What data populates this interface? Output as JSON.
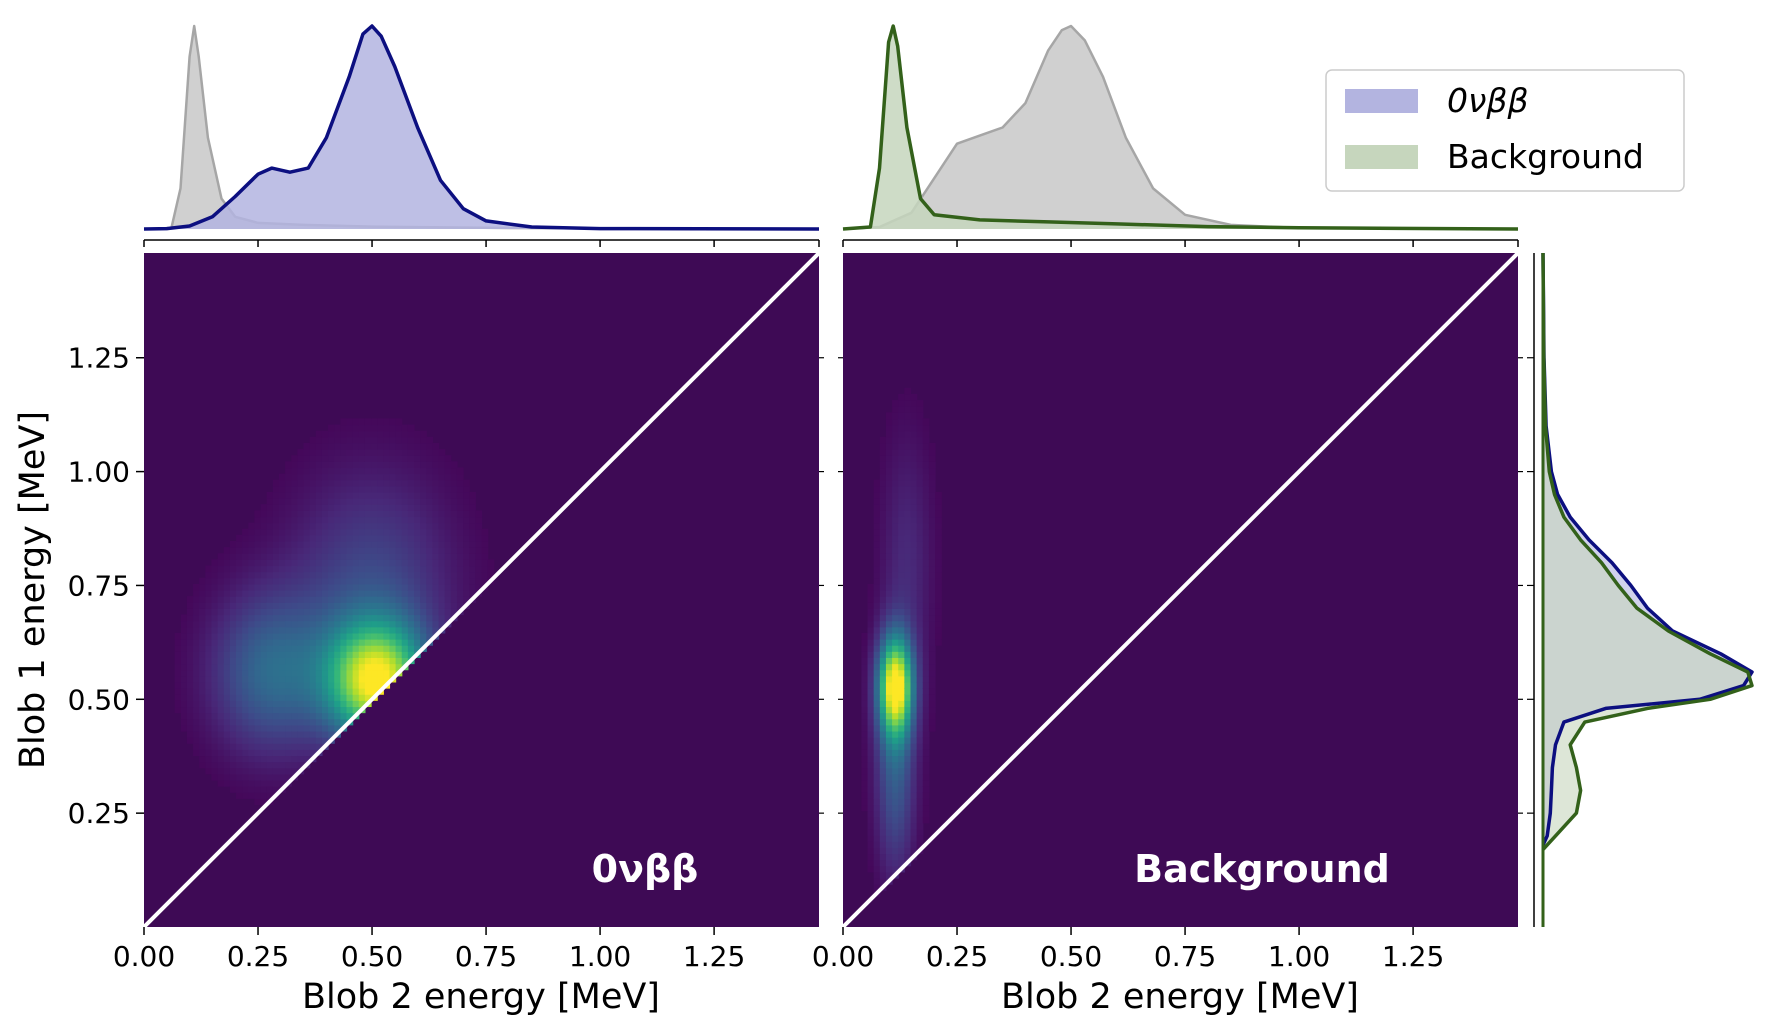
{
  "colors": {
    "signal_line": "#0c0f80",
    "signal_fill": "#b3b4e0",
    "background_line": "#33611a",
    "background_fill": "#c6d6bd",
    "reference_line": "#a6a6a6",
    "reference_fill": "#c8c8c8",
    "heatmap_low": "#440154",
    "heatmap_floor": "#3e0a55",
    "diagonal": "#ffffff"
  },
  "legend": {
    "placement": "top-right",
    "items": [
      {
        "label": "0νββ",
        "color_key": "signal_fill"
      },
      {
        "label": "Background",
        "color_key": "background_fill"
      }
    ]
  },
  "chart_data": [
    {
      "type": "heatmap",
      "panel_label": "0νββ",
      "xlabel": "Blob 2 energy [MeV]",
      "ylabel": "Blob 1 energy [MeV]",
      "xlim": [
        0,
        1.48
      ],
      "ylim": [
        0,
        1.48
      ],
      "xticks": [
        0.0,
        0.25,
        0.5,
        0.75,
        1.0,
        1.25
      ],
      "xtick_labels": [
        "0.00",
        "0.25",
        "0.50",
        "0.75",
        "1.00",
        "1.25"
      ],
      "yticks": [
        0.25,
        0.5,
        0.75,
        1.0,
        1.25
      ],
      "ytick_labels": [
        "0.25",
        "0.50",
        "0.75",
        "1.00",
        "1.25"
      ],
      "colormap": "viridis",
      "diagonal_line": true,
      "density_components": [
        {
          "x": 0.51,
          "y": 0.54,
          "sx": 0.075,
          "sy": 0.09,
          "weight": 1.0
        },
        {
          "x": 0.28,
          "y": 0.56,
          "sx": 0.09,
          "sy": 0.12,
          "weight": 0.35
        },
        {
          "x": 0.5,
          "y": 0.75,
          "sx": 0.12,
          "sy": 0.17,
          "weight": 0.22
        }
      ]
    },
    {
      "type": "heatmap",
      "panel_label": "Background",
      "xlabel": "Blob 2 energy [MeV]",
      "xlim": [
        0,
        1.48
      ],
      "ylim": [
        0,
        1.48
      ],
      "xticks": [
        0.0,
        0.25,
        0.5,
        0.75,
        1.0,
        1.25
      ],
      "xtick_labels": [
        "0.00",
        "0.25",
        "0.50",
        "0.75",
        "1.00",
        "1.25"
      ],
      "colormap": "viridis",
      "diagonal_line": true,
      "density_components": [
        {
          "x": 0.115,
          "y": 0.53,
          "sx": 0.026,
          "sy": 0.075,
          "weight": 1.0
        },
        {
          "x": 0.115,
          "y": 0.35,
          "sx": 0.03,
          "sy": 0.16,
          "weight": 0.3
        },
        {
          "x": 0.14,
          "y": 0.8,
          "sx": 0.04,
          "sy": 0.2,
          "weight": 0.12
        }
      ]
    },
    {
      "type": "area",
      "panel": "top-left",
      "axis": "Blob 2 energy [MeV]",
      "xlim": [
        0,
        1.48
      ],
      "series": [
        {
          "name": "0νββ",
          "color_key": "signal_line",
          "fill_key": "signal_fill",
          "points": [
            [
              0,
              0
            ],
            [
              0.05,
              0.002
            ],
            [
              0.1,
              0.015
            ],
            [
              0.15,
              0.06
            ],
            [
              0.2,
              0.16
            ],
            [
              0.25,
              0.27
            ],
            [
              0.28,
              0.3
            ],
            [
              0.32,
              0.28
            ],
            [
              0.36,
              0.3
            ],
            [
              0.4,
              0.45
            ],
            [
              0.45,
              0.75
            ],
            [
              0.48,
              0.96
            ],
            [
              0.5,
              1.0
            ],
            [
              0.52,
              0.95
            ],
            [
              0.55,
              0.8
            ],
            [
              0.6,
              0.5
            ],
            [
              0.65,
              0.24
            ],
            [
              0.7,
              0.1
            ],
            [
              0.75,
              0.04
            ],
            [
              0.85,
              0.01
            ],
            [
              1.0,
              0.002
            ],
            [
              1.48,
              0
            ]
          ]
        },
        {
          "name": "reference",
          "color_key": "reference_line",
          "fill_key": "reference_fill",
          "points": [
            [
              0,
              0
            ],
            [
              0.06,
              0.005
            ],
            [
              0.08,
              0.2
            ],
            [
              0.1,
              0.85
            ],
            [
              0.11,
              1.0
            ],
            [
              0.12,
              0.85
            ],
            [
              0.14,
              0.45
            ],
            [
              0.17,
              0.15
            ],
            [
              0.2,
              0.06
            ],
            [
              0.25,
              0.03
            ],
            [
              0.35,
              0.02
            ],
            [
              0.5,
              0.012
            ],
            [
              0.8,
              0.005
            ],
            [
              1.48,
              0
            ]
          ]
        }
      ]
    },
    {
      "type": "area",
      "panel": "top-right",
      "axis": "Blob 2 energy [MeV]",
      "xlim": [
        0,
        1.48
      ],
      "series": [
        {
          "name": "Background",
          "color_key": "background_line",
          "fill_key": "background_fill",
          "points": [
            [
              0,
              0
            ],
            [
              0.06,
              0.01
            ],
            [
              0.08,
              0.3
            ],
            [
              0.1,
              0.92
            ],
            [
              0.11,
              1.0
            ],
            [
              0.12,
              0.9
            ],
            [
              0.14,
              0.5
            ],
            [
              0.17,
              0.15
            ],
            [
              0.2,
              0.07
            ],
            [
              0.3,
              0.045
            ],
            [
              0.45,
              0.035
            ],
            [
              0.6,
              0.025
            ],
            [
              0.8,
              0.012
            ],
            [
              1.0,
              0.006
            ],
            [
              1.48,
              0
            ]
          ]
        },
        {
          "name": "reference",
          "color_key": "reference_line",
          "fill_key": "reference_fill",
          "points": [
            [
              0,
              0
            ],
            [
              0.08,
              0.01
            ],
            [
              0.15,
              0.08
            ],
            [
              0.2,
              0.25
            ],
            [
              0.25,
              0.42
            ],
            [
              0.3,
              0.46
            ],
            [
              0.35,
              0.5
            ],
            [
              0.4,
              0.62
            ],
            [
              0.45,
              0.88
            ],
            [
              0.48,
              0.98
            ],
            [
              0.5,
              1.0
            ],
            [
              0.53,
              0.93
            ],
            [
              0.57,
              0.75
            ],
            [
              0.62,
              0.45
            ],
            [
              0.68,
              0.2
            ],
            [
              0.75,
              0.07
            ],
            [
              0.85,
              0.02
            ],
            [
              1.0,
              0.005
            ],
            [
              1.48,
              0
            ]
          ]
        }
      ]
    },
    {
      "type": "area",
      "panel": "right",
      "orientation": "vertical",
      "axis": "Blob 1 energy [MeV]",
      "ylim": [
        0,
        1.48
      ],
      "series": [
        {
          "name": "0νββ",
          "color_key": "signal_line",
          "fill_key": "signal_fill",
          "points": [
            [
              0.18,
              0
            ],
            [
              0.2,
              0.02
            ],
            [
              0.25,
              0.035
            ],
            [
              0.3,
              0.04
            ],
            [
              0.35,
              0.045
            ],
            [
              0.4,
              0.06
            ],
            [
              0.45,
              0.1
            ],
            [
              0.48,
              0.3
            ],
            [
              0.5,
              0.75
            ],
            [
              0.53,
              0.96
            ],
            [
              0.56,
              1.0
            ],
            [
              0.6,
              0.85
            ],
            [
              0.65,
              0.62
            ],
            [
              0.7,
              0.5
            ],
            [
              0.75,
              0.42
            ],
            [
              0.8,
              0.33
            ],
            [
              0.85,
              0.22
            ],
            [
              0.9,
              0.13
            ],
            [
              0.95,
              0.07
            ],
            [
              1.0,
              0.04
            ],
            [
              1.1,
              0.015
            ],
            [
              1.25,
              0.005
            ],
            [
              1.48,
              0
            ]
          ]
        },
        {
          "name": "Background",
          "color_key": "background_line",
          "fill_key": "background_fill",
          "points": [
            [
              0.17,
              0
            ],
            [
              0.2,
              0.06
            ],
            [
              0.25,
              0.16
            ],
            [
              0.3,
              0.18
            ],
            [
              0.35,
              0.16
            ],
            [
              0.4,
              0.13
            ],
            [
              0.45,
              0.2
            ],
            [
              0.48,
              0.5
            ],
            [
              0.5,
              0.8
            ],
            [
              0.53,
              1.0
            ],
            [
              0.56,
              0.98
            ],
            [
              0.6,
              0.8
            ],
            [
              0.65,
              0.6
            ],
            [
              0.7,
              0.45
            ],
            [
              0.75,
              0.36
            ],
            [
              0.8,
              0.28
            ],
            [
              0.85,
              0.18
            ],
            [
              0.9,
              0.1
            ],
            [
              0.95,
              0.055
            ],
            [
              1.0,
              0.03
            ],
            [
              1.1,
              0.012
            ],
            [
              1.25,
              0.004
            ],
            [
              1.48,
              0
            ]
          ]
        }
      ]
    }
  ]
}
